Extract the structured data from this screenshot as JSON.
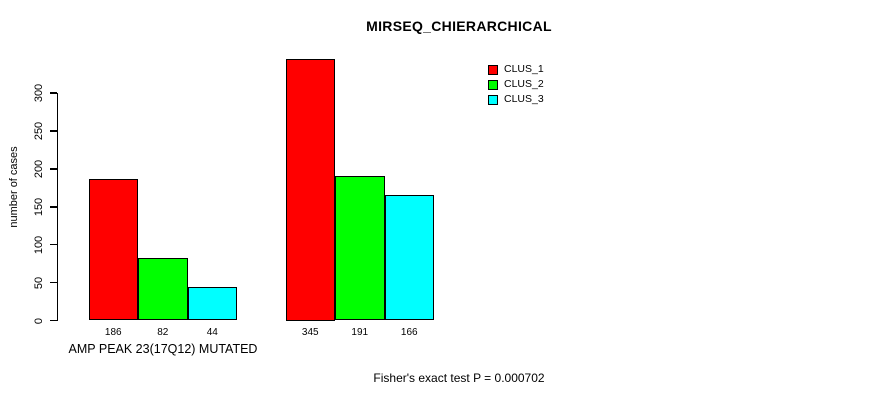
{
  "figure": {
    "background": "#ffffff"
  },
  "chart_data": {
    "type": "bar",
    "title": "MIRSEQ_CHIERARCHICAL",
    "xlabel": "",
    "ylabel": "number of cases",
    "ylim": [
      0,
      300
    ],
    "yticks": [
      0,
      50,
      100,
      150,
      200,
      250,
      300
    ],
    "grid": false,
    "categories": [
      "AMP PEAK 23(17Q12) MUTATED",
      ""
    ],
    "series": [
      {
        "name": "CLUS_1",
        "color": "#ff0000",
        "values": [
          186,
          345
        ]
      },
      {
        "name": "CLUS_2",
        "color": "#00ff00",
        "values": [
          82,
          191
        ]
      },
      {
        "name": "CLUS_3",
        "color": "#00ffff",
        "values": [
          44,
          166
        ]
      }
    ],
    "show_bar_values": true,
    "legend": {
      "position": "top-right",
      "entries": [
        "CLUS_1",
        "CLUS_2",
        "CLUS_3"
      ]
    },
    "annotation": "Fisher's exact test P = 0.000702"
  }
}
